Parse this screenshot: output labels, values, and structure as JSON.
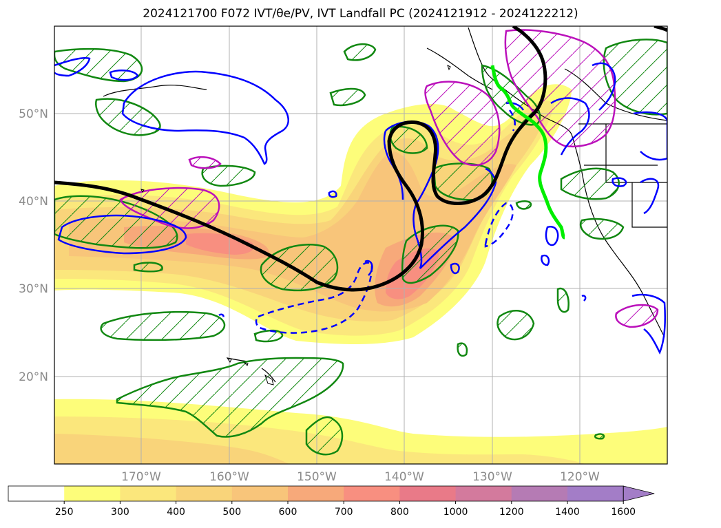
{
  "title": "2024121700 F072 IVT/θe/PV, IVT Landfall PC (2024121912 - 2024122212)",
  "map": {
    "lat_labels": [
      "50°N",
      "40°N",
      "30°N",
      "20°N"
    ],
    "lon_labels": [
      "170°W",
      "160°W",
      "150°W",
      "140°W",
      "130°W",
      "120°W"
    ]
  },
  "colorbar": {
    "ticks": [
      "250",
      "300",
      "400",
      "500",
      "600",
      "700",
      "800",
      "1000",
      "1200",
      "1400",
      "1600"
    ],
    "colors": [
      "#ffffff",
      "#fdfd7a",
      "#fbe77c",
      "#f9d47a",
      "#f8c57a",
      "#f7a97a",
      "#f88f80",
      "#e97a88",
      "#d37a9d",
      "#b57bb4",
      "#a37dc7"
    ]
  },
  "colors": {
    "ivt_fill_low": "#fdfd7a",
    "ivt_fill_high": "#f88f80",
    "theta_e_contour": "#000000",
    "pv_contour_blue": "#0000ff",
    "contour_green": "#118811",
    "contour_magenta": "#bb11bb",
    "landfall_track": "#00ee00"
  }
}
